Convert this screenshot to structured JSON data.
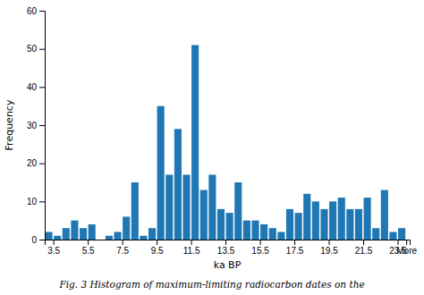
{
  "chart_data": {
    "type": "histogram",
    "xlabel": "ka BP",
    "ylabel": "Frequency",
    "caption": "Fig. 3  Histogram of maximum-limiting radiocarbon dates on the",
    "bins": [
      3.0,
      3.5,
      4.0,
      4.5,
      5.0,
      5.5,
      6.0,
      6.5,
      7.0,
      7.5,
      8.0,
      8.5,
      9.0,
      9.5,
      10.0,
      10.5,
      11.0,
      11.5,
      12.0,
      12.5,
      13.0,
      13.5,
      14.0,
      14.5,
      15.0,
      15.5,
      16.0,
      16.5,
      17.0,
      17.5,
      18.0,
      18.5,
      19.0,
      19.5,
      20.0,
      20.5,
      21.0,
      21.5,
      22.0,
      22.5,
      23.0,
      23.5,
      24.0
    ],
    "values": [
      2,
      1,
      3,
      5,
      3,
      4,
      0,
      1,
      2,
      6,
      15,
      1,
      3,
      35,
      17,
      29,
      17,
      51,
      13,
      17,
      8,
      7,
      15,
      5,
      5,
      4,
      3,
      2,
      8,
      7,
      12,
      10,
      8,
      10,
      11,
      8,
      8,
      11,
      3,
      13,
      2,
      3
    ],
    "xlim": [
      3.0,
      24.2
    ],
    "xticks": [
      3.5,
      5.5,
      7.5,
      9.5,
      11.5,
      13.5,
      15.5,
      17.5,
      19.5,
      21.5,
      23.5,
      {
        "value": 24.0,
        "label": "More"
      }
    ],
    "ylim": [
      0,
      60
    ],
    "yticks": [
      0,
      10,
      20,
      30,
      40,
      50,
      60
    ],
    "grid": false
  }
}
